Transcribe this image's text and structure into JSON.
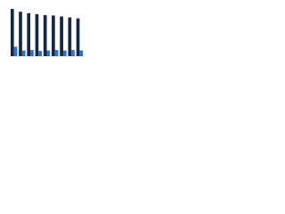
{
  "chart_data": {
    "type": "grouped-bar",
    "categories": [
      null,
      null,
      null,
      null,
      null,
      null,
      null,
      null,
      null
    ],
    "series": [
      {
        "color": "#12284a",
        "values": [
          100,
          94,
          91,
          89,
          87,
          86,
          84,
          82,
          80
        ]
      },
      {
        "color": "#2d6ed1",
        "values": [
          20,
          12,
          13,
          11,
          12,
          13,
          12,
          13,
          12
        ]
      }
    ],
    "ylim": [
      0,
      100
    ]
  }
}
